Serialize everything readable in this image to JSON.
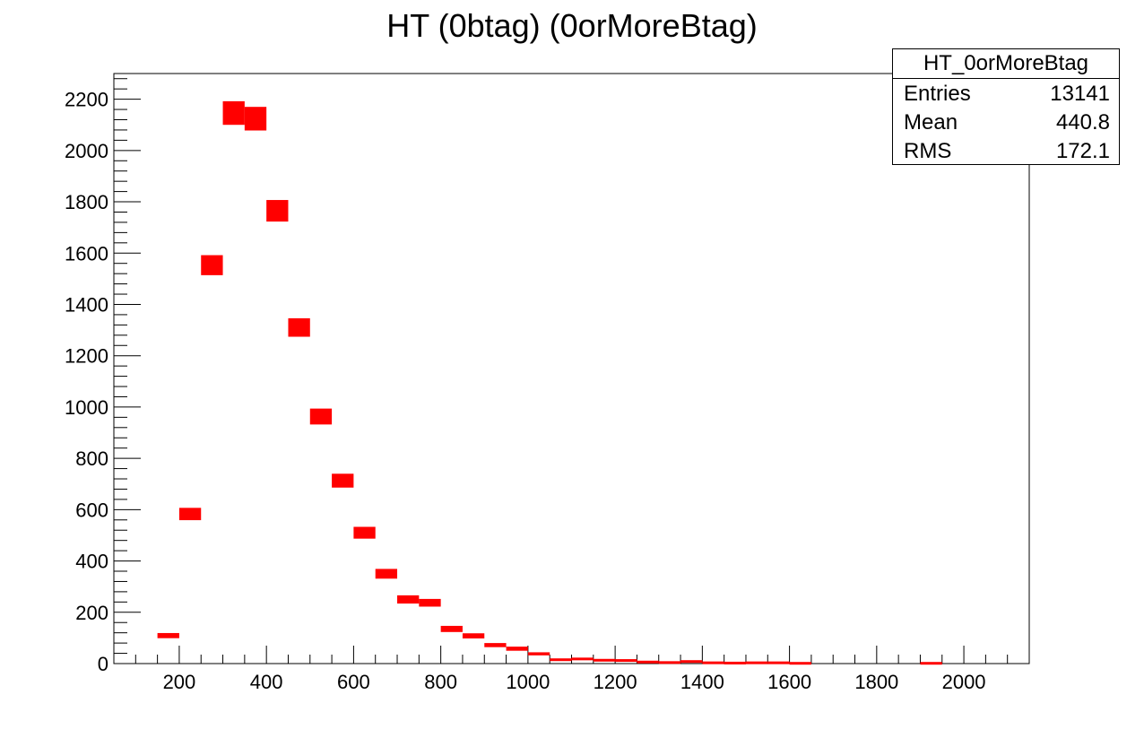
{
  "chart_data": {
    "type": "bar",
    "title": "HT (0btag) (0orMoreBtag)",
    "xlabel": "",
    "ylabel": "",
    "xlim": [
      50,
      2150
    ],
    "ylim": [
      0,
      2300
    ],
    "x_ticks": [
      200,
      400,
      600,
      800,
      1000,
      1200,
      1400,
      1600,
      1800,
      2000
    ],
    "y_ticks": [
      0,
      200,
      400,
      600,
      800,
      1000,
      1200,
      1400,
      1600,
      1800,
      2000,
      2200
    ],
    "bin_width": 50,
    "series": [
      {
        "name": "HT_0orMoreBtag",
        "color": "#ff0000",
        "points": [
          {
            "x": 175,
            "y": 109,
            "err": 10
          },
          {
            "x": 225,
            "y": 583,
            "err": 24
          },
          {
            "x": 275,
            "y": 1553,
            "err": 39
          },
          {
            "x": 325,
            "y": 2146,
            "err": 46
          },
          {
            "x": 375,
            "y": 2124,
            "err": 46
          },
          {
            "x": 425,
            "y": 1765,
            "err": 42
          },
          {
            "x": 475,
            "y": 1310,
            "err": 36
          },
          {
            "x": 525,
            "y": 963,
            "err": 31
          },
          {
            "x": 575,
            "y": 713,
            "err": 27
          },
          {
            "x": 625,
            "y": 510,
            "err": 23
          },
          {
            "x": 675,
            "y": 350,
            "err": 19
          },
          {
            "x": 725,
            "y": 250,
            "err": 16
          },
          {
            "x": 775,
            "y": 237,
            "err": 15
          },
          {
            "x": 825,
            "y": 135,
            "err": 12
          },
          {
            "x": 875,
            "y": 108,
            "err": 10
          },
          {
            "x": 925,
            "y": 72,
            "err": 8
          },
          {
            "x": 975,
            "y": 58,
            "err": 8
          },
          {
            "x": 1025,
            "y": 38,
            "err": 6
          },
          {
            "x": 1075,
            "y": 15,
            "err": 4
          },
          {
            "x": 1125,
            "y": 18,
            "err": 4
          },
          {
            "x": 1175,
            "y": 13,
            "err": 4
          },
          {
            "x": 1225,
            "y": 12,
            "err": 3
          },
          {
            "x": 1275,
            "y": 6,
            "err": 2
          },
          {
            "x": 1325,
            "y": 4,
            "err": 2
          },
          {
            "x": 1375,
            "y": 8,
            "err": 3
          },
          {
            "x": 1425,
            "y": 3,
            "err": 2
          },
          {
            "x": 1475,
            "y": 2,
            "err": 1
          },
          {
            "x": 1525,
            "y": 3,
            "err": 2
          },
          {
            "x": 1575,
            "y": 3,
            "err": 2
          },
          {
            "x": 1625,
            "y": 1,
            "err": 1
          },
          {
            "x": 1925,
            "y": 1,
            "err": 1
          }
        ]
      }
    ]
  },
  "stats": {
    "name": "HT_0orMoreBtag",
    "rows": [
      {
        "label": "Entries",
        "value": "13141"
      },
      {
        "label": "Mean",
        "value": "440.8"
      },
      {
        "label": "RMS",
        "value": "172.1"
      }
    ]
  }
}
